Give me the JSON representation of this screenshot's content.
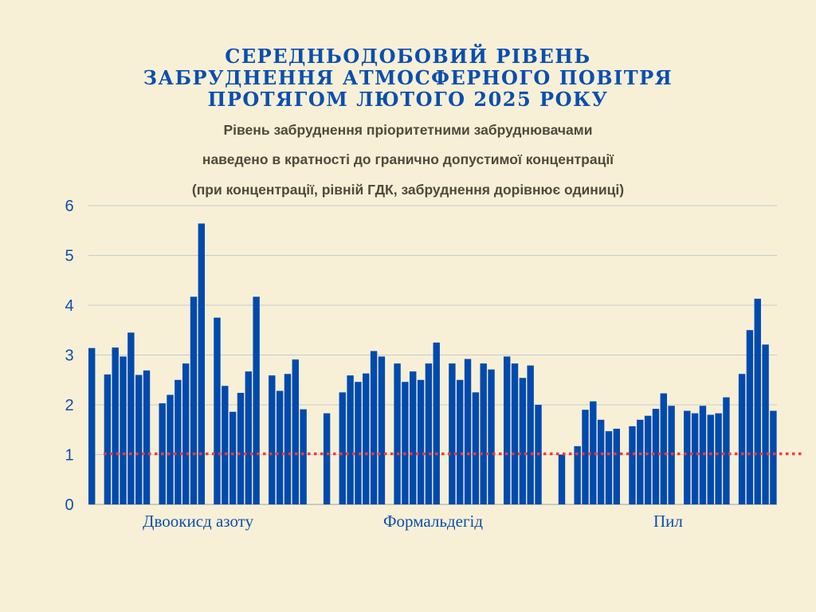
{
  "title_lines": [
    "СЕРЕДНЬОДОБОВИЙ РІВЕНЬ",
    "ЗАБРУДНЕННЯ АТМОСФЕРНОГО ПОВІТРЯ",
    "ПРОТЯГОМ ЛЮТОГО 2025 РОКУ"
  ],
  "subtitle_lines": [
    "Рівень забруднення пріоритетними забруднювачами",
    "наведено в кратності до гранично допустимої концентрації",
    "(при концентрації, рівній ГДК, забруднення дорівнює одиниці)"
  ],
  "colors": {
    "background": "#f8f0d6",
    "bar": "#004aad",
    "limit_line": "#f03c3c",
    "text": "#0a4fb0"
  },
  "chart_data": {
    "type": "bar",
    "title": "СЕРЕДНЬОДОБОВИЙ РІВЕНЬ ЗАБРУДНЕННЯ АТМОСФЕРНОГО ПОВІТРЯ ПРОТЯГОМ ЛЮТОГО 2025 РОКУ",
    "ylim": [
      0,
      6
    ],
    "yticks": [
      "0",
      "1",
      "2",
      "3",
      "4",
      "5",
      "6"
    ],
    "grid": true,
    "reference_line": 1,
    "groups": [
      {
        "name": "Двоокисд азоту",
        "values": [
          3.14,
          null,
          2.61,
          3.15,
          2.97,
          3.45,
          2.6,
          2.69,
          null,
          2.03,
          2.2,
          2.5,
          2.83,
          4.17,
          5.64,
          null,
          3.75,
          2.38,
          1.86,
          2.24,
          2.67,
          4.17,
          null,
          2.59,
          2.28,
          2.62,
          2.91,
          1.91
        ]
      },
      {
        "name": "Формальдегід",
        "values": [
          1.83,
          null,
          2.25,
          2.59,
          2.46,
          2.63,
          3.08,
          2.97,
          null,
          2.83,
          2.46,
          2.67,
          2.5,
          2.83,
          3.25,
          null,
          2.83,
          2.5,
          2.92,
          2.25,
          2.83,
          2.71,
          null,
          2.97,
          2.83,
          2.54,
          2.79,
          2.0
        ]
      },
      {
        "name": "Пил",
        "values": [
          1.0,
          null,
          1.17,
          1.9,
          2.07,
          1.7,
          1.47,
          1.52,
          null,
          1.57,
          1.7,
          1.78,
          1.92,
          2.23,
          1.98,
          null,
          1.88,
          1.83,
          1.98,
          1.8,
          1.83,
          2.15,
          null,
          2.62,
          3.5,
          4.13,
          3.21,
          1.88
        ]
      }
    ]
  }
}
